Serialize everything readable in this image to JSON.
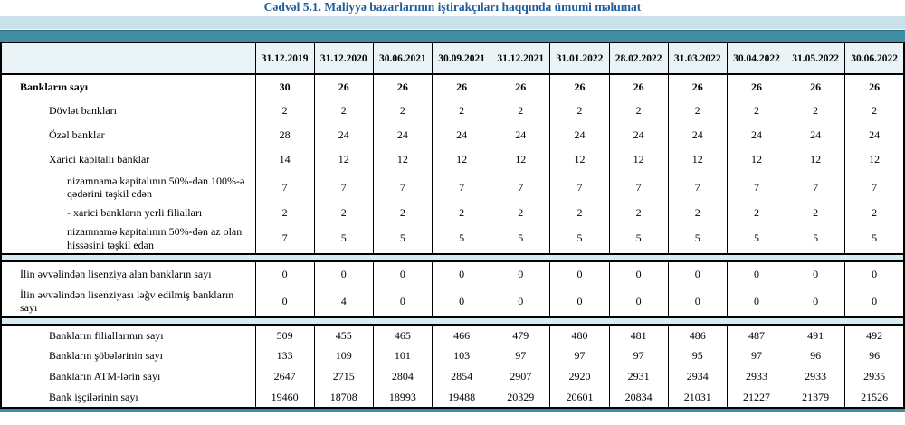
{
  "title": "Cədvəl 5.1. Maliyyə bazarlarının iştirakçıları haqqında ümumi məlumat",
  "colors": {
    "title_text": "#1e5c9b",
    "band_light": "#c8e1ea",
    "band_teal": "#3e8da3",
    "header_bg": "#eaf4f7",
    "separator_bg": "#d9ebf2",
    "border": "#000000"
  },
  "table": {
    "columns": [
      "31.12.2019",
      "31.12.2020",
      "30.06.2021",
      "30.09.2021",
      "31.12.2021",
      "31.01.2022",
      "28.02.2022",
      "31.03.2022",
      "30.04.2022",
      "31.05.2022",
      "30.06.2022"
    ],
    "sections": [
      {
        "rows": [
          {
            "label": "Bankların sayı",
            "indent": 0,
            "bold": true,
            "values": [
              "30",
              "26",
              "26",
              "26",
              "26",
              "26",
              "26",
              "26",
              "26",
              "26",
              "26"
            ]
          },
          {
            "label": "Dövlət bankları",
            "indent": 1,
            "bold": false,
            "values": [
              "2",
              "2",
              "2",
              "2",
              "2",
              "2",
              "2",
              "2",
              "2",
              "2",
              "2"
            ]
          },
          {
            "label": "Özəl banklar",
            "indent": 1,
            "bold": false,
            "values": [
              "28",
              "24",
              "24",
              "24",
              "24",
              "24",
              "24",
              "24",
              "24",
              "24",
              "24"
            ]
          },
          {
            "label": "Xarici kapitallı banklar",
            "indent": 1,
            "bold": false,
            "values": [
              "14",
              "12",
              "12",
              "12",
              "12",
              "12",
              "12",
              "12",
              "12",
              "12",
              "12"
            ]
          },
          {
            "label": "nizamnamə kapitalının 50%-dən 100%-ə qədərini təşkil edən",
            "indent": 2,
            "bold": false,
            "values": [
              "7",
              "7",
              "7",
              "7",
              "7",
              "7",
              "7",
              "7",
              "7",
              "7",
              "7"
            ]
          },
          {
            "label": "- xarici bankların yerli filialları",
            "indent": 2,
            "bold": false,
            "values": [
              "2",
              "2",
              "2",
              "2",
              "2",
              "2",
              "2",
              "2",
              "2",
              "2",
              "2"
            ]
          },
          {
            "label": "nizamnamə kapitalının 50%-dən az olan hissəsini təşkil edən",
            "indent": 2,
            "bold": false,
            "values": [
              "7",
              "5",
              "5",
              "5",
              "5",
              "5",
              "5",
              "5",
              "5",
              "5",
              "5"
            ]
          }
        ]
      },
      {
        "rows": [
          {
            "label": "İlin əvvəlindən lisenziya alan bankların sayı",
            "indent": 0,
            "bold": false,
            "values": [
              "0",
              "0",
              "0",
              "0",
              "0",
              "0",
              "0",
              "0",
              "0",
              "0",
              "0"
            ]
          },
          {
            "label": "İlin əvvəlindən lisenziyası ləğv edilmiş bankların sayı",
            "indent": 0,
            "bold": false,
            "values": [
              "0",
              "4",
              "0",
              "0",
              "0",
              "0",
              "0",
              "0",
              "0",
              "0",
              "0"
            ]
          }
        ]
      },
      {
        "rows": [
          {
            "label": "Bankların filiallarının sayı",
            "indent": 1,
            "bold": false,
            "values": [
              "509",
              "455",
              "465",
              "466",
              "479",
              "480",
              "481",
              "486",
              "487",
              "491",
              "492"
            ]
          },
          {
            "label": "Bankların şöbələrinin sayı",
            "indent": 1,
            "bold": false,
            "values": [
              "133",
              "109",
              "101",
              "103",
              "97",
              "97",
              "97",
              "95",
              "97",
              "96",
              "96"
            ]
          },
          {
            "label": "Bankların ATM-lərin sayı",
            "indent": 1,
            "bold": false,
            "values": [
              "2647",
              "2715",
              "2804",
              "2854",
              "2907",
              "2920",
              "2931",
              "2934",
              "2933",
              "2933",
              "2935"
            ]
          },
          {
            "label": "Bank işçilərinin sayı",
            "indent": 1,
            "bold": false,
            "values": [
              "19460",
              "18708",
              "18993",
              "19488",
              "20329",
              "20601",
              "20834",
              "21031",
              "21227",
              "21379",
              "21526"
            ]
          }
        ]
      }
    ]
  }
}
